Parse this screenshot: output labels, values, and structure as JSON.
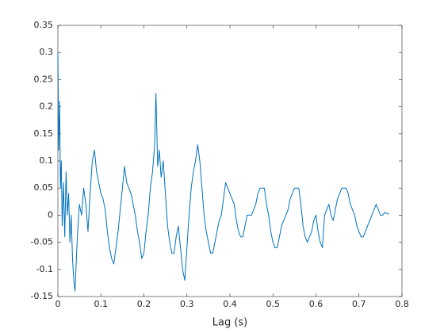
{
  "chart_data": {
    "type": "line",
    "xlabel": "Lag (s)",
    "x": [
      0,
      0.002,
      0.004,
      0.006,
      0.008,
      0.01,
      0.013,
      0.016,
      0.019,
      0.022,
      0.025,
      0.028,
      0.031,
      0.034,
      0.037,
      0.04,
      0.043,
      0.046,
      0.05,
      0.055,
      0.06,
      0.065,
      0.07,
      0.075,
      0.08,
      0.085,
      0.09,
      0.095,
      0.1,
      0.105,
      0.11,
      0.115,
      0.12,
      0.125,
      0.13,
      0.135,
      0.14,
      0.145,
      0.15,
      0.155,
      0.16,
      0.165,
      0.17,
      0.175,
      0.18,
      0.185,
      0.19,
      0.195,
      0.2,
      0.205,
      0.21,
      0.215,
      0.22,
      0.225,
      0.228,
      0.232,
      0.236,
      0.24,
      0.245,
      0.25,
      0.255,
      0.26,
      0.265,
      0.27,
      0.275,
      0.28,
      0.285,
      0.29,
      0.295,
      0.3,
      0.305,
      0.31,
      0.315,
      0.32,
      0.325,
      0.33,
      0.335,
      0.34,
      0.345,
      0.35,
      0.355,
      0.36,
      0.365,
      0.37,
      0.375,
      0.38,
      0.385,
      0.39,
      0.395,
      0.4,
      0.405,
      0.41,
      0.415,
      0.42,
      0.425,
      0.43,
      0.435,
      0.44,
      0.445,
      0.45,
      0.455,
      0.46,
      0.465,
      0.47,
      0.475,
      0.48,
      0.485,
      0.49,
      0.495,
      0.5,
      0.505,
      0.51,
      0.515,
      0.52,
      0.525,
      0.53,
      0.535,
      0.54,
      0.545,
      0.55,
      0.555,
      0.56,
      0.565,
      0.57,
      0.575,
      0.58,
      0.585,
      0.59,
      0.595,
      0.6,
      0.605,
      0.61,
      0.615,
      0.62,
      0.625,
      0.63,
      0.635,
      0.64,
      0.645,
      0.65,
      0.655,
      0.66,
      0.665,
      0.67,
      0.675,
      0.68,
      0.685,
      0.69,
      0.695,
      0.7,
      0.705,
      0.71,
      0.715,
      0.72,
      0.725,
      0.73,
      0.735,
      0.74,
      0.745,
      0.75,
      0.755,
      0.76,
      0.765,
      0.77
    ],
    "series": [
      {
        "color": "#0072bd",
        "values": [
          0.3,
          0.12,
          0.21,
          0.05,
          0.1,
          -0.02,
          0.06,
          -0.04,
          0.08,
          0.0,
          0.04,
          -0.05,
          0.0,
          -0.08,
          -0.12,
          -0.14,
          -0.08,
          -0.03,
          0.02,
          0.0,
          0.05,
          0.02,
          -0.03,
          0.04,
          0.1,
          0.12,
          0.08,
          0.06,
          0.04,
          0.03,
          0.01,
          -0.03,
          -0.06,
          -0.08,
          -0.09,
          -0.06,
          -0.03,
          0.01,
          0.05,
          0.09,
          0.06,
          0.05,
          0.04,
          0.02,
          0.0,
          -0.03,
          -0.05,
          -0.08,
          -0.07,
          -0.03,
          0.0,
          0.05,
          0.08,
          0.13,
          0.225,
          0.09,
          0.12,
          0.07,
          0.1,
          0.04,
          -0.02,
          -0.05,
          -0.07,
          -0.07,
          -0.04,
          -0.02,
          -0.06,
          -0.1,
          -0.12,
          -0.06,
          0.0,
          0.05,
          0.08,
          0.1,
          0.13,
          0.1,
          0.05,
          0.0,
          -0.03,
          -0.05,
          -0.07,
          -0.07,
          -0.05,
          -0.03,
          -0.01,
          0.0,
          0.03,
          0.06,
          0.05,
          0.04,
          0.03,
          0.02,
          -0.01,
          -0.03,
          -0.04,
          -0.04,
          -0.02,
          0.0,
          0.0,
          0.0,
          0.01,
          0.02,
          0.04,
          0.05,
          0.05,
          0.05,
          0.02,
          0.0,
          -0.03,
          -0.05,
          -0.06,
          -0.06,
          -0.04,
          -0.02,
          -0.01,
          0.0,
          0.01,
          0.03,
          0.04,
          0.05,
          0.05,
          0.05,
          0.02,
          -0.02,
          -0.04,
          -0.05,
          -0.04,
          -0.03,
          -0.01,
          0.0,
          -0.03,
          -0.05,
          -0.06,
          0.0,
          0.01,
          0.02,
          0.0,
          -0.01,
          0.01,
          0.03,
          0.04,
          0.05,
          0.05,
          0.05,
          0.04,
          0.02,
          0.01,
          0.0,
          -0.02,
          -0.03,
          -0.04,
          -0.04,
          -0.03,
          -0.02,
          -0.01,
          0.0,
          0.01,
          0.02,
          0.01,
          0.0,
          0.0,
          0.005,
          0.003,
          0.002
        ]
      }
    ],
    "xlim": [
      0,
      0.8
    ],
    "xticks": [
      0,
      0.1,
      0.2,
      0.3,
      0.4,
      0.5,
      0.6,
      0.7,
      0.8
    ],
    "ylim": [
      -0.15,
      0.35
    ],
    "yticks": [
      -0.15,
      -0.1,
      -0.05,
      0,
      0.05,
      0.1,
      0.15,
      0.2,
      0.25,
      0.3,
      0.35
    ]
  }
}
